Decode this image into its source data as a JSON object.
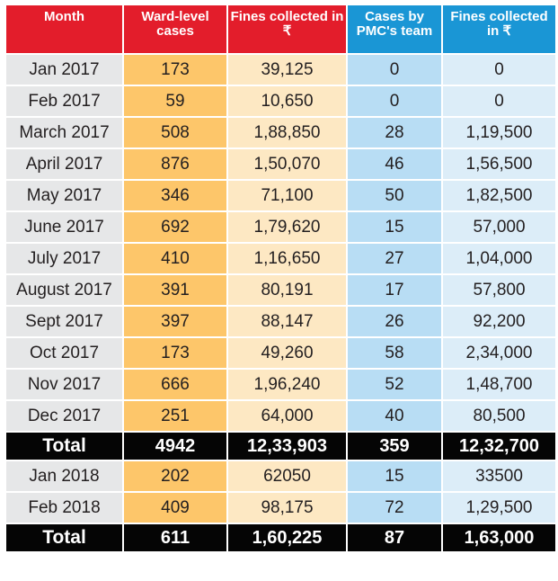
{
  "table": {
    "headers": [
      "Month",
      "Ward-level cases",
      "Fines collected in ₹",
      "Cases by PMC's team",
      "Fines collected in ₹"
    ],
    "rows_2017": [
      [
        "Jan 2017",
        "173",
        "39,125",
        "0",
        "0"
      ],
      [
        "Feb 2017",
        "59",
        "10,650",
        "0",
        "0"
      ],
      [
        "March 2017",
        "508",
        "1,88,850",
        "28",
        "1,19,500"
      ],
      [
        "April 2017",
        "876",
        "1,50,070",
        "46",
        "1,56,500"
      ],
      [
        "May 2017",
        "346",
        "71,100",
        "50",
        "1,82,500"
      ],
      [
        "June 2017",
        "692",
        "1,79,620",
        "15",
        "57,000"
      ],
      [
        "July 2017",
        "410",
        "1,16,650",
        "27",
        "1,04,000"
      ],
      [
        "August 2017",
        "391",
        "80,191",
        "17",
        "57,800"
      ],
      [
        "Sept 2017",
        "397",
        "88,147",
        "26",
        "92,200"
      ],
      [
        "Oct 2017",
        "173",
        "49,260",
        "58",
        "2,34,000"
      ],
      [
        "Nov 2017",
        "666",
        "1,96,240",
        "52",
        "1,48,700"
      ],
      [
        "Dec 2017",
        "251",
        "64,000",
        "40",
        "80,500"
      ]
    ],
    "total_2017": [
      "Total",
      "4942",
      "12,33,903",
      "359",
      "12,32,700"
    ],
    "rows_2018": [
      [
        "Jan 2018",
        "202",
        "62050",
        "15",
        "33500"
      ],
      [
        "Feb 2018",
        "409",
        "98,175",
        "72",
        "1,29,500"
      ]
    ],
    "total_2018": [
      "Total",
      "611",
      "1,60,225",
      "87",
      "1,63,000"
    ]
  },
  "colors": {
    "header_red": "#e31d2b",
    "header_blue": "#1a96d5",
    "month_bg": "#e6e7e8",
    "ward_bg": "#fdc66a",
    "fines1_bg": "#fde8c3",
    "pmc_bg": "#b8ddf4",
    "fines2_bg": "#dcedf8",
    "total_bg": "#050505"
  }
}
